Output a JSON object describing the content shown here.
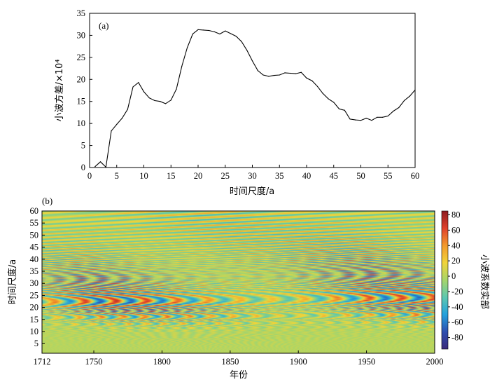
{
  "chart_data": [
    {
      "panel": "(a)",
      "type": "line",
      "xlabel": "时间尺度/a",
      "ylabel": "小波方差/×10⁴",
      "xlim": [
        0,
        60
      ],
      "ylim": [
        0,
        35
      ],
      "xticks": [
        "0",
        "5",
        "10",
        "15",
        "20",
        "25",
        "30",
        "35",
        "40",
        "45",
        "50",
        "55",
        "60"
      ],
      "yticks": [
        "0",
        "5",
        "10",
        "15",
        "20",
        "25",
        "30",
        "35"
      ],
      "grid": false,
      "line_color": "#000000",
      "x": [
        1,
        2,
        3,
        4,
        5,
        6,
        7,
        8,
        9,
        10,
        11,
        12,
        13,
        14,
        15,
        16,
        17,
        18,
        19,
        20,
        21,
        22,
        23,
        24,
        25,
        26,
        27,
        28,
        29,
        30,
        31,
        32,
        33,
        34,
        35,
        36,
        37,
        38,
        39,
        40,
        41,
        42,
        43,
        44,
        45,
        46,
        47,
        48,
        49,
        50,
        51,
        52,
        53,
        54,
        55,
        56,
        57,
        58,
        59,
        60
      ],
      "y": [
        0.2,
        1.3,
        0.1,
        8.3,
        9.8,
        11.2,
        13.2,
        18.3,
        19.3,
        17.2,
        15.8,
        15.2,
        15.0,
        14.5,
        15.3,
        17.8,
        23.0,
        27.2,
        30.3,
        31.3,
        31.2,
        31.1,
        30.8,
        30.3,
        31.0,
        30.4,
        29.8,
        28.6,
        26.6,
        24.2,
        22.0,
        21.0,
        20.7,
        20.9,
        21.0,
        21.5,
        21.4,
        21.3,
        21.6,
        20.3,
        19.7,
        18.4,
        16.8,
        15.6,
        14.8,
        13.3,
        13.0,
        11.0,
        10.8,
        10.7,
        11.2,
        10.7,
        11.4,
        11.4,
        11.7,
        12.8,
        13.6,
        15.2,
        16.2,
        17.6
      ]
    },
    {
      "panel": "(b)",
      "type": "heatmap",
      "xlabel": "年份",
      "ylabel": "时间尺度/a",
      "xlim": [
        1712,
        2000
      ],
      "ylim": [
        1,
        60
      ],
      "xticks": [
        "1712",
        "1750",
        "1800",
        "1850",
        "1900",
        "1950",
        "2000"
      ],
      "yticks": [
        "5",
        "10",
        "15",
        "20",
        "25",
        "30",
        "35",
        "40",
        "45",
        "50",
        "55",
        "60"
      ],
      "colorbar_label": "小波系数实部",
      "colorbar_range": [
        -95,
        85
      ],
      "colorbar_ticks": [
        "80",
        "60",
        "40",
        "20",
        "0",
        "-20",
        "-40",
        "-60",
        "-80"
      ],
      "colormap": [
        "#3b2a7b",
        "#2e4fb0",
        "#23a1dc",
        "#5dc8b0",
        "#a7d56a",
        "#f0d43a",
        "#f29a2c",
        "#e0412c",
        "#8e1c20"
      ],
      "amplitude_by_period": [
        [
          2,
          4
        ],
        [
          10,
          12
        ],
        [
          15,
          45
        ],
        [
          20,
          70
        ],
        [
          28,
          65
        ],
        [
          35,
          55
        ],
        [
          45,
          50
        ],
        [
          55,
          45
        ],
        [
          60,
          40
        ]
      ],
      "amplitude_by_year": [
        [
          1712,
          0.7
        ],
        [
          1750,
          1.0
        ],
        [
          1800,
          0.95
        ],
        [
          1850,
          0.85
        ],
        [
          1880,
          0.75
        ],
        [
          1900,
          0.8
        ],
        [
          1950,
          1.0
        ],
        [
          2000,
          0.9
        ]
      ]
    }
  ]
}
